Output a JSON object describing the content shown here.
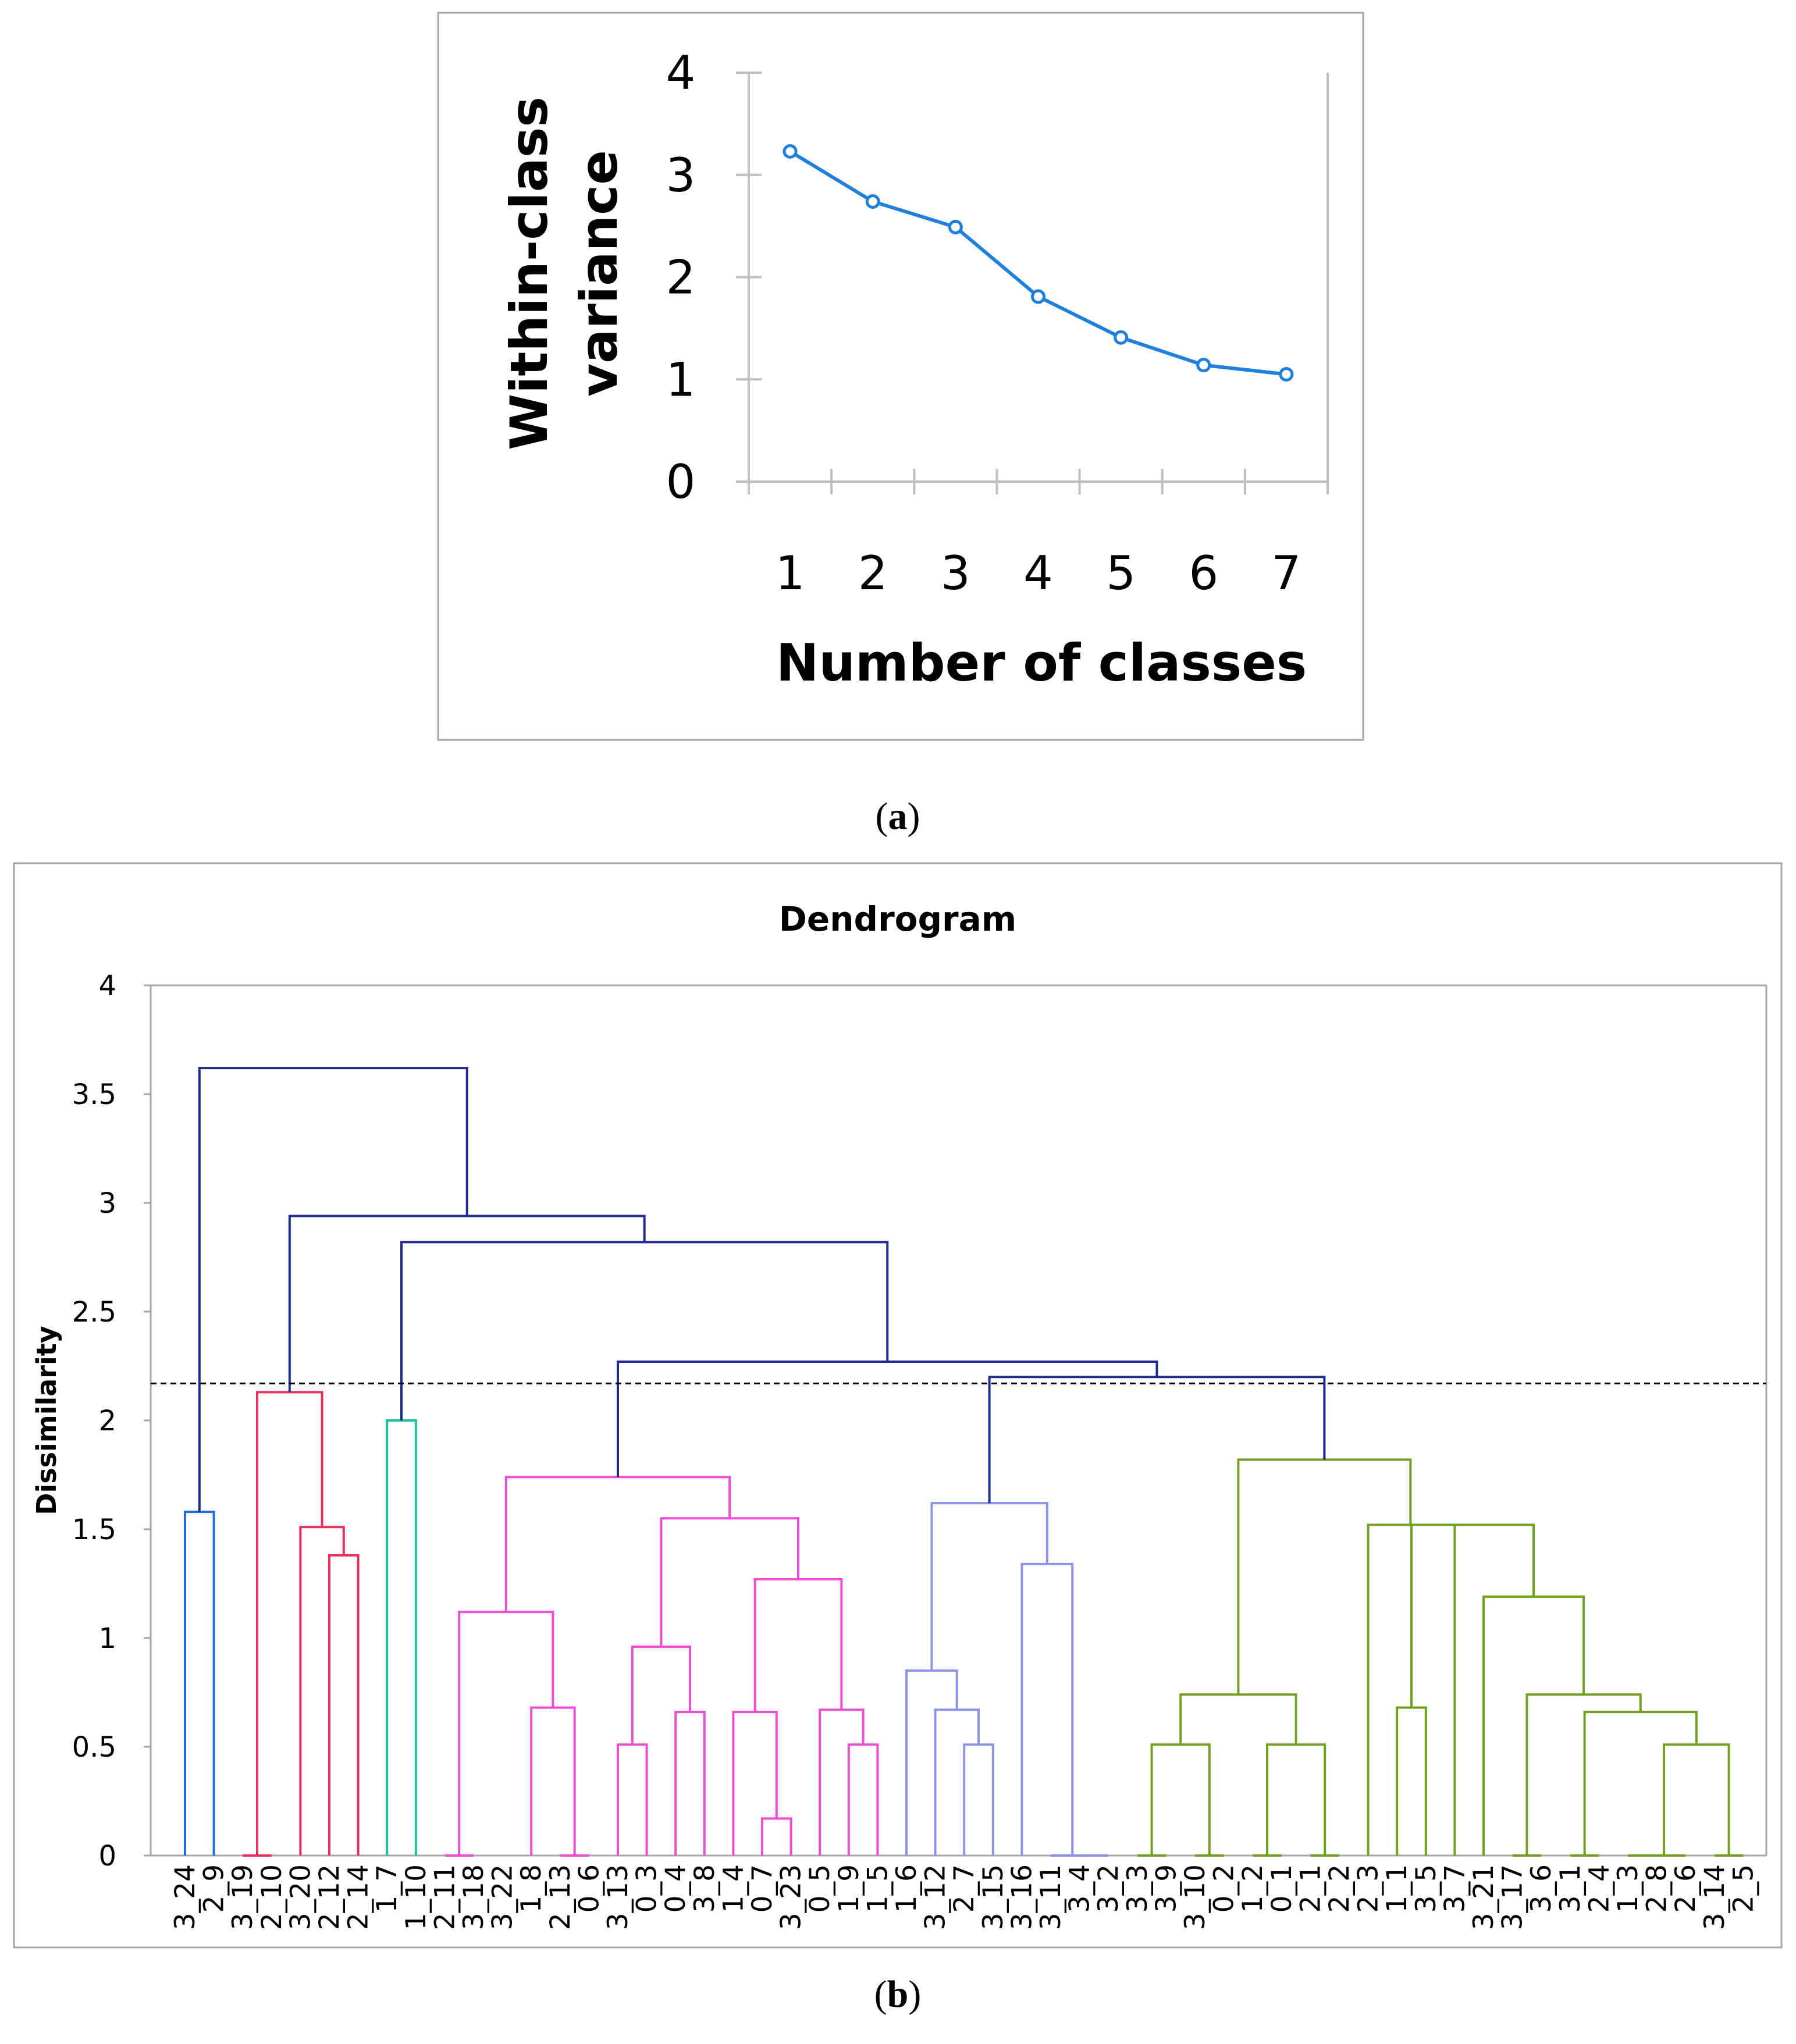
{
  "panel_a": {
    "caption_open": "(",
    "caption_letter": "a",
    "caption_close": ")"
  },
  "panel_b": {
    "caption_open": "(",
    "caption_letter": "b",
    "caption_close": ")"
  },
  "chart_data": [
    {
      "type": "line",
      "title": "",
      "xlabel": "Number of classes",
      "ylabel": "Within-class variance",
      "ylabel_lines": [
        "Within-class",
        "variance"
      ],
      "x": [
        1,
        2,
        3,
        4,
        5,
        6,
        7
      ],
      "x_tick_labels": [
        "1",
        "2",
        "3",
        "4",
        "5",
        "6",
        "7"
      ],
      "y_tick_labels": [
        "0",
        "1",
        "2",
        "3",
        "4"
      ],
      "ylim": [
        0,
        4
      ],
      "grid": false,
      "series": [
        {
          "name": "Within-class variance",
          "color": "#1e7fdc",
          "values": [
            3.23,
            2.74,
            2.49,
            1.81,
            1.41,
            1.14,
            1.05
          ]
        }
      ]
    },
    {
      "type": "dendrogram",
      "title": "Dendrogram",
      "xlabel": "",
      "ylabel": "Dissimilarity",
      "ylim": [
        0,
        4
      ],
      "y_tick_labels": [
        "0",
        "0.5",
        "1",
        "1.5",
        "2",
        "2.5",
        "3",
        "3.5",
        "4"
      ],
      "cut_height": 2.17,
      "leaves": [
        "3_24",
        "2_9",
        "3_19",
        "2_10",
        "3_20",
        "2_12",
        "2_14",
        "1_7",
        "1_10",
        "2_11",
        "3_18",
        "3_22",
        "1_8",
        "2_13",
        "0_6",
        "3_13",
        "0_3",
        "0_4",
        "3_8",
        "1_4",
        "0_7",
        "3_23",
        "0_5",
        "1_9",
        "1_5",
        "1_6",
        "3_12",
        "2_7",
        "3_15",
        "3_16",
        "3_11",
        "3_4",
        "3_2",
        "3_3",
        "3_9",
        "3_10",
        "0_2",
        "1_2",
        "0_1",
        "2_1",
        "2_2",
        "2_3",
        "1_1",
        "3_5",
        "3_7",
        "3_21",
        "3_17",
        "3_6",
        "3_1",
        "2_4",
        "1_3",
        "2_8",
        "2_6",
        "3_14",
        "2_5"
      ],
      "colors": {
        "root": "#1f2b8f",
        "cluster_blue": "#1f6fd6",
        "cluster_red": "#e8315a",
        "cluster_teal": "#1dbf9f",
        "cluster_pink": "#ec4ed2",
        "cluster_lavender": "#8c93e8",
        "cluster_green": "#73a020"
      },
      "merges": [
        {
          "id": "B1",
          "left": "L0",
          "right": "L1",
          "height": 1.58,
          "color": "cluster_blue"
        },
        {
          "id": "R1",
          "left": "L2",
          "right": "L3",
          "height": 0.0,
          "color": "cluster_red"
        },
        {
          "id": "R2",
          "left": "L5",
          "right": "L6",
          "height": 1.38,
          "color": "cluster_red"
        },
        {
          "id": "R3",
          "left": "L4",
          "right": "R2",
          "height": 1.51,
          "color": "cluster_red"
        },
        {
          "id": "R4",
          "left": "R1",
          "right": "R3",
          "height": 2.13,
          "color": "cluster_red"
        },
        {
          "id": "T1",
          "left": "L7",
          "right": "L8",
          "height": 2.0,
          "color": "cluster_teal"
        },
        {
          "id": "P1",
          "left": "L9",
          "right": "L10",
          "height": 0.0,
          "color": "cluster_pink"
        },
        {
          "id": "P2",
          "left": "L13",
          "right": "L14",
          "height": 0.0,
          "color": "cluster_pink"
        },
        {
          "id": "P3",
          "left": "L12",
          "right": "P2",
          "height": 0.68,
          "color": "cluster_pink"
        },
        {
          "id": "P4",
          "left": "P1",
          "right": "P3",
          "height": 1.12,
          "color": "cluster_pink"
        },
        {
          "id": "P5",
          "left": "L15",
          "right": "L16",
          "height": 0.51,
          "color": "cluster_pink"
        },
        {
          "id": "P6",
          "left": "L17",
          "right": "L18",
          "height": 0.66,
          "color": "cluster_pink"
        },
        {
          "id": "P7",
          "left": "P5",
          "right": "P6",
          "height": 0.96,
          "color": "cluster_pink"
        },
        {
          "id": "P8",
          "left": "L20",
          "right": "L21",
          "height": 0.17,
          "color": "cluster_pink"
        },
        {
          "id": "P9",
          "left": "L19",
          "right": "P8",
          "height": 0.66,
          "color": "cluster_pink"
        },
        {
          "id": "P10",
          "left": "L23",
          "right": "L24",
          "height": 0.51,
          "color": "cluster_pink"
        },
        {
          "id": "P11",
          "left": "L22",
          "right": "P10",
          "height": 0.67,
          "color": "cluster_pink"
        },
        {
          "id": "P12",
          "left": "P9",
          "right": "P11",
          "height": 1.27,
          "color": "cluster_pink"
        },
        {
          "id": "P13",
          "left": "P7",
          "right": "P12",
          "height": 1.55,
          "color": "cluster_pink"
        },
        {
          "id": "P14",
          "left": "P4",
          "right": "P13",
          "height": 1.74,
          "color": "cluster_pink"
        },
        {
          "id": "V1",
          "left": "L27",
          "right": "L28",
          "height": 0.51,
          "color": "cluster_lavender"
        },
        {
          "id": "V2",
          "left": "L26",
          "right": "V1",
          "height": 0.67,
          "color": "cluster_lavender"
        },
        {
          "id": "V3",
          "left": "L25",
          "right": "V2",
          "height": 0.85,
          "color": "cluster_lavender"
        },
        {
          "id": "V4",
          "left": "L31",
          "right": "L32",
          "height": 0.0,
          "color": "cluster_lavender"
        },
        {
          "id": "V5",
          "left": "L30",
          "right": "V4",
          "height": 0.0,
          "color": "cluster_lavender"
        },
        {
          "id": "V6",
          "left": "L29",
          "right": "V5",
          "height": 1.34,
          "color": "cluster_lavender"
        },
        {
          "id": "V7",
          "left": "V3",
          "right": "V6",
          "height": 1.62,
          "color": "cluster_lavender"
        },
        {
          "id": "G1",
          "left": "L33",
          "right": "L34",
          "height": 0.0,
          "color": "cluster_green"
        },
        {
          "id": "G2",
          "left": "L35",
          "right": "L36",
          "height": 0.0,
          "color": "cluster_green"
        },
        {
          "id": "G3",
          "left": "G1",
          "right": "G2",
          "height": 0.51,
          "color": "cluster_green"
        },
        {
          "id": "G4",
          "left": "L37",
          "right": "L38",
          "height": 0.0,
          "color": "cluster_green"
        },
        {
          "id": "G5",
          "left": "L39",
          "right": "L40",
          "height": 0.0,
          "color": "cluster_green"
        },
        {
          "id": "G6",
          "left": "G4",
          "right": "G5",
          "height": 0.51,
          "color": "cluster_green"
        },
        {
          "id": "G7",
          "left": "G3",
          "right": "G6",
          "height": 0.74,
          "color": "cluster_green"
        },
        {
          "id": "G8",
          "left": "L42",
          "right": "L43",
          "height": 0.68,
          "color": "cluster_green"
        },
        {
          "id": "G9",
          "left": "L46",
          "right": "L47",
          "height": 0.0,
          "color": "cluster_green"
        },
        {
          "id": "G10",
          "left": "L48",
          "right": "L49",
          "height": 0.0,
          "color": "cluster_green"
        },
        {
          "id": "G11",
          "left": "L50",
          "right": "L51",
          "height": 0.0,
          "color": "cluster_green"
        },
        {
          "id": "G12",
          "left": "G11",
          "right": "L52",
          "height": 0.0,
          "color": "cluster_green"
        },
        {
          "id": "G13",
          "left": "L53",
          "right": "L54",
          "height": 0.0,
          "color": "cluster_green"
        },
        {
          "id": "G14",
          "left": "G12",
          "right": "G13",
          "height": 0.51,
          "color": "cluster_green"
        },
        {
          "id": "G15",
          "left": "G10",
          "right": "G14",
          "height": 0.66,
          "color": "cluster_green"
        },
        {
          "id": "G16",
          "left": "G9",
          "right": "G15",
          "height": 0.74,
          "color": "cluster_green"
        },
        {
          "id": "G17",
          "left": "L45",
          "right": "G16",
          "height": 1.19,
          "color": "cluster_green"
        },
        {
          "id": "G18",
          "left": "L44",
          "right": "G17",
          "height": 1.52,
          "color": "cluster_green"
        },
        {
          "id": "G19",
          "left": "G8",
          "right": "G18",
          "height": 1.52,
          "color": "cluster_green"
        },
        {
          "id": "G20",
          "left": "L41",
          "right": "G19",
          "height": 1.52,
          "color": "cluster_green"
        },
        {
          "id": "G21",
          "left": "G7",
          "right": "G20",
          "height": 1.82,
          "color": "cluster_green"
        },
        {
          "id": "N1",
          "left": "V7",
          "right": "G21",
          "height": 2.2,
          "color": "root"
        },
        {
          "id": "N2",
          "left": "P14",
          "right": "N1",
          "height": 2.27,
          "color": "root"
        },
        {
          "id": "N3",
          "left": "T1",
          "right": "N2",
          "height": 2.82,
          "color": "root"
        },
        {
          "id": "N4",
          "left": "R4",
          "right": "N3",
          "height": 2.94,
          "color": "root"
        },
        {
          "id": "N5",
          "left": "B1",
          "right": "N4",
          "height": 3.62,
          "color": "root"
        }
      ]
    }
  ]
}
